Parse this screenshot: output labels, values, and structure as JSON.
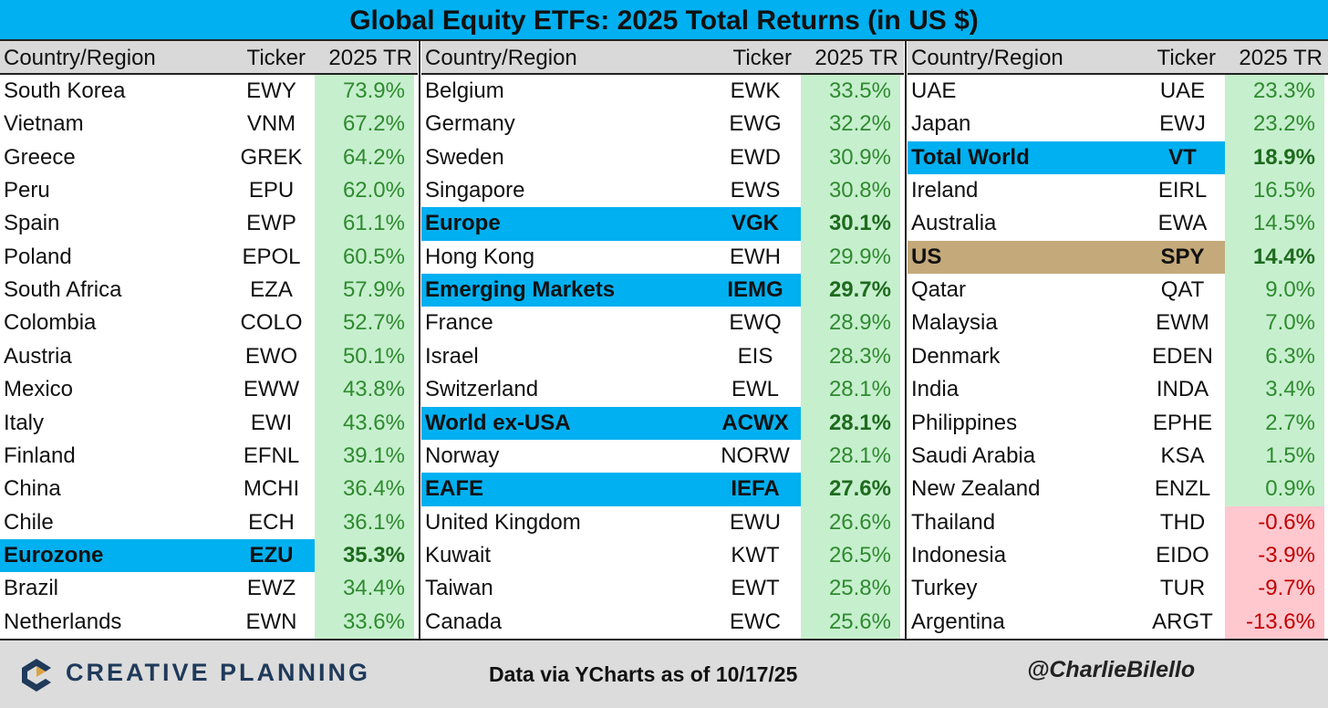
{
  "header": {
    "title": "Global Equity ETFs: 2025 Total Returns (in US $)"
  },
  "table": {
    "columns": [
      "Country/Region",
      "Ticker",
      "2025 TR"
    ],
    "positive_color": "#c6efce",
    "positive_text_color": "#2f8a2f",
    "negative_color": "#ffc7ce",
    "negative_text_color": "#c00000",
    "groups": [
      {
        "rows": [
          {
            "country": "South Korea",
            "ticker": "EWY",
            "return": "73.9%"
          },
          {
            "country": "Vietnam",
            "ticker": "VNM",
            "return": "67.2%"
          },
          {
            "country": "Greece",
            "ticker": "GREK",
            "return": "64.2%"
          },
          {
            "country": "Peru",
            "ticker": "EPU",
            "return": "62.0%"
          },
          {
            "country": "Spain",
            "ticker": "EWP",
            "return": "61.1%"
          },
          {
            "country": "Poland",
            "ticker": "EPOL",
            "return": "60.5%"
          },
          {
            "country": "South Africa",
            "ticker": "EZA",
            "return": "57.9%"
          },
          {
            "country": "Colombia",
            "ticker": "COLO",
            "return": "52.7%"
          },
          {
            "country": "Austria",
            "ticker": "EWO",
            "return": "50.1%"
          },
          {
            "country": "Mexico",
            "ticker": "EWW",
            "return": "43.8%"
          },
          {
            "country": "Italy",
            "ticker": "EWI",
            "return": "43.6%"
          },
          {
            "country": "Finland",
            "ticker": "EFNL",
            "return": "39.1%"
          },
          {
            "country": "China",
            "ticker": "MCHI",
            "return": "36.4%"
          },
          {
            "country": "Chile",
            "ticker": "ECH",
            "return": "36.1%"
          },
          {
            "country": "Eurozone",
            "ticker": "EZU",
            "return": "35.3%",
            "highlight": "#00b0f0"
          },
          {
            "country": "Brazil",
            "ticker": "EWZ",
            "return": "34.4%"
          },
          {
            "country": "Netherlands",
            "ticker": "EWN",
            "return": "33.6%"
          }
        ]
      },
      {
        "rows": [
          {
            "country": "Belgium",
            "ticker": "EWK",
            "return": "33.5%"
          },
          {
            "country": "Germany",
            "ticker": "EWG",
            "return": "32.2%"
          },
          {
            "country": "Sweden",
            "ticker": "EWD",
            "return": "30.9%"
          },
          {
            "country": "Singapore",
            "ticker": "EWS",
            "return": "30.8%"
          },
          {
            "country": "Europe",
            "ticker": "VGK",
            "return": "30.1%",
            "highlight": "#00b0f0"
          },
          {
            "country": "Hong Kong",
            "ticker": "EWH",
            "return": "29.9%"
          },
          {
            "country": "Emerging Markets",
            "ticker": "IEMG",
            "return": "29.7%",
            "highlight": "#00b0f0"
          },
          {
            "country": "France",
            "ticker": "EWQ",
            "return": "28.9%"
          },
          {
            "country": "Israel",
            "ticker": "EIS",
            "return": "28.3%"
          },
          {
            "country": "Switzerland",
            "ticker": "EWL",
            "return": "28.1%"
          },
          {
            "country": "World ex-USA",
            "ticker": "ACWX",
            "return": "28.1%",
            "highlight": "#00b0f0"
          },
          {
            "country": "Norway",
            "ticker": "NORW",
            "return": "28.1%"
          },
          {
            "country": "EAFE",
            "ticker": "IEFA",
            "return": "27.6%",
            "highlight": "#00b0f0"
          },
          {
            "country": "United Kingdom",
            "ticker": "EWU",
            "return": "26.6%"
          },
          {
            "country": "Kuwait",
            "ticker": "KWT",
            "return": "26.5%"
          },
          {
            "country": "Taiwan",
            "ticker": "EWT",
            "return": "25.8%"
          },
          {
            "country": "Canada",
            "ticker": "EWC",
            "return": "25.6%"
          }
        ]
      },
      {
        "rows": [
          {
            "country": "UAE",
            "ticker": "UAE",
            "return": "23.3%"
          },
          {
            "country": "Japan",
            "ticker": "EWJ",
            "return": "23.2%"
          },
          {
            "country": "Total World",
            "ticker": "VT",
            "return": "18.9%",
            "highlight": "#00b0f0"
          },
          {
            "country": "Ireland",
            "ticker": "EIRL",
            "return": "16.5%"
          },
          {
            "country": "Australia",
            "ticker": "EWA",
            "return": "14.5%"
          },
          {
            "country": "US",
            "ticker": "SPY",
            "return": "14.4%",
            "highlight": "#c4a97a"
          },
          {
            "country": "Qatar",
            "ticker": "QAT",
            "return": "9.0%"
          },
          {
            "country": "Malaysia",
            "ticker": "EWM",
            "return": "7.0%"
          },
          {
            "country": "Denmark",
            "ticker": "EDEN",
            "return": "6.3%"
          },
          {
            "country": "India",
            "ticker": "INDA",
            "return": "3.4%"
          },
          {
            "country": "Philippines",
            "ticker": "EPHE",
            "return": "2.7%"
          },
          {
            "country": "Saudi Arabia",
            "ticker": "KSA",
            "return": "1.5%"
          },
          {
            "country": "New Zealand",
            "ticker": "ENZL",
            "return": "0.9%"
          },
          {
            "country": "Thailand",
            "ticker": "THD",
            "return": "-0.6%"
          },
          {
            "country": "Indonesia",
            "ticker": "EIDO",
            "return": "-3.9%"
          },
          {
            "country": "Turkey",
            "ticker": "TUR",
            "return": "-9.7%"
          },
          {
            "country": "Argentina",
            "ticker": "ARGT",
            "return": "-13.6%"
          }
        ]
      }
    ]
  },
  "footer": {
    "logo": "CREATIVE PLANNING",
    "source": "Data via YCharts as of 10/17/25",
    "handle": "@CharlieBilello"
  }
}
